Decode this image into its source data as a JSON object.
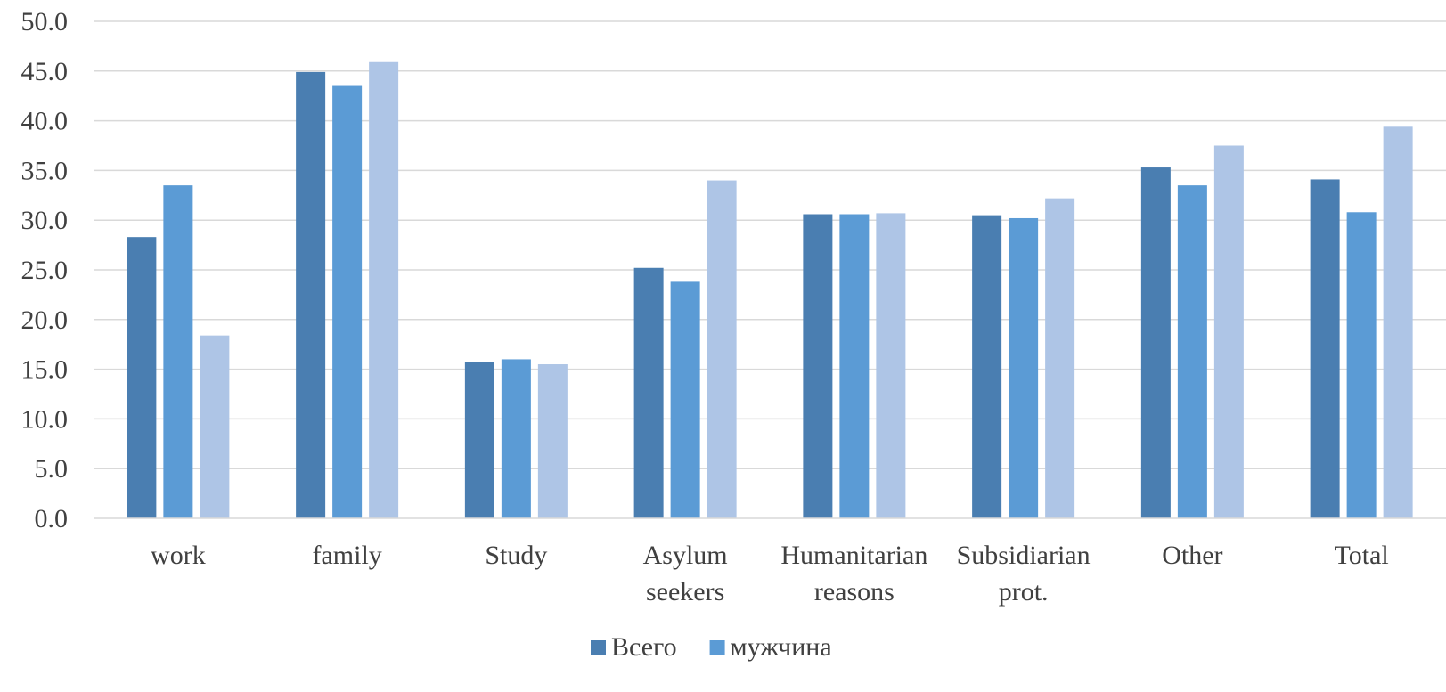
{
  "chart_data": {
    "type": "bar",
    "title": "",
    "xlabel": "",
    "ylabel": "",
    "ylim": [
      0,
      50
    ],
    "yticks": [
      "0.0",
      "5.0",
      "10.0",
      "15.0",
      "20.0",
      "25.0",
      "30.0",
      "35.0",
      "40.0",
      "45.0",
      "50.0"
    ],
    "grid": true,
    "legend_position": "bottom",
    "categories": [
      [
        "work"
      ],
      [
        "family"
      ],
      [
        "Study"
      ],
      [
        "Asylum",
        "seekers"
      ],
      [
        "Humanitarian",
        "reasons"
      ],
      [
        "Subsidiarian",
        "prot."
      ],
      [
        "Other"
      ],
      [
        "Total"
      ]
    ],
    "series": [
      {
        "name": "Всего",
        "color": "#4a7eb1",
        "values": [
          28.3,
          44.9,
          15.7,
          25.2,
          30.6,
          30.5,
          35.3,
          34.1
        ]
      },
      {
        "name": "мужчина",
        "color": "#5b9bd5",
        "values": [
          33.5,
          43.5,
          16.0,
          23.8,
          30.6,
          30.2,
          33.5,
          30.8
        ]
      },
      {
        "color": "#aec5e6",
        "values": [
          18.4,
          45.9,
          15.5,
          34.0,
          30.7,
          32.2,
          37.5,
          39.4
        ]
      }
    ]
  }
}
